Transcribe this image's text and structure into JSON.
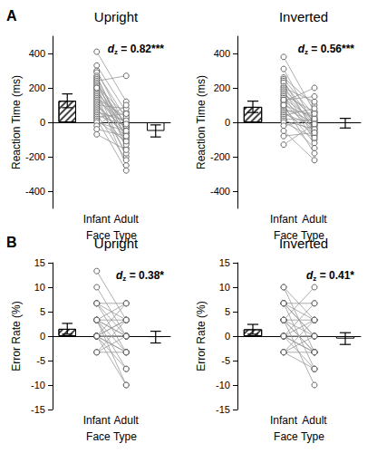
{
  "chart_data": [
    {
      "type": "bar",
      "panel_label": "A",
      "title": "Upright",
      "annotation": "dz = 0.82***",
      "xlabel": "Face Type",
      "ylabel": "Reaction Time (ms)",
      "categories": [
        null,
        "Infant",
        "Adult",
        null
      ],
      "ylim": [
        -500,
        500
      ],
      "yticks": [
        -400,
        -200,
        0,
        200,
        400
      ],
      "series": [
        {
          "type": "bar",
          "color": "#ffffff",
          "values": [
            125,
            null,
            null,
            -50
          ],
          "error": [
            40,
            null,
            null,
            35
          ]
        },
        {
          "type": "line",
          "marker": "circle",
          "color": "#999999",
          "pairs": [
            [
              410,
              120
            ],
            [
              330,
              60
            ],
            [
              300,
              -30
            ],
            [
              290,
              20
            ],
            [
              270,
              -100
            ],
            [
              260,
              -60
            ],
            [
              250,
              -150
            ],
            [
              240,
              270
            ],
            [
              230,
              -20
            ],
            [
              220,
              -80
            ],
            [
              210,
              40
            ],
            [
              200,
              -120
            ],
            [
              190,
              -200
            ],
            [
              180,
              -40
            ],
            [
              170,
              0
            ],
            [
              160,
              -250
            ],
            [
              150,
              -70
            ],
            [
              140,
              30
            ],
            [
              130,
              -10
            ],
            [
              120,
              -180
            ],
            [
              110,
              -90
            ],
            [
              100,
              80
            ],
            [
              90,
              -30
            ],
            [
              80,
              -130
            ],
            [
              70,
              -60
            ],
            [
              60,
              10
            ],
            [
              50,
              -220
            ],
            [
              40,
              -20
            ],
            [
              30,
              50
            ],
            [
              20,
              -280
            ],
            [
              10,
              -110
            ],
            [
              0,
              -50
            ],
            [
              -20,
              100
            ],
            [
              -40,
              -80
            ],
            [
              -70,
              -160
            ],
            [
              200,
              -10
            ]
          ]
        }
      ]
    },
    {
      "type": "bar",
      "title": "Inverted",
      "annotation": "dz = 0.56***",
      "xlabel": "Face Type",
      "ylabel": "Reaction Time (ms)",
      "categories": [
        null,
        "Infant",
        "Adult",
        null
      ],
      "ylim": [
        -500,
        500
      ],
      "yticks": [
        -400,
        -200,
        0,
        200,
        400
      ],
      "series": [
        {
          "type": "bar",
          "color": "#ffffff",
          "values": [
            90,
            null,
            null,
            -5
          ],
          "error": [
            33,
            null,
            null,
            28
          ]
        },
        {
          "type": "line",
          "marker": "circle",
          "color": "#999999",
          "pairs": [
            [
              380,
              60
            ],
            [
              310,
              -20
            ],
            [
              260,
              100
            ],
            [
              250,
              40
            ],
            [
              240,
              -60
            ],
            [
              230,
              0
            ],
            [
              210,
              -40
            ],
            [
              200,
              120
            ],
            [
              190,
              20
            ],
            [
              180,
              -80
            ],
            [
              170,
              -10
            ],
            [
              160,
              60
            ],
            [
              150,
              -100
            ],
            [
              140,
              10
            ],
            [
              130,
              -30
            ],
            [
              120,
              200
            ],
            [
              110,
              -50
            ],
            [
              100,
              30
            ],
            [
              90,
              -120
            ],
            [
              80,
              0
            ],
            [
              70,
              50
            ],
            [
              60,
              -70
            ],
            [
              50,
              -20
            ],
            [
              40,
              80
            ],
            [
              30,
              -150
            ],
            [
              20,
              10
            ],
            [
              10,
              -40
            ],
            [
              0,
              -90
            ],
            [
              -20,
              20
            ],
            [
              -50,
              -220
            ],
            [
              -80,
              -60
            ],
            [
              -130,
              -10
            ],
            [
              130,
              150
            ],
            [
              100,
              -180
            ]
          ]
        }
      ]
    },
    {
      "type": "bar",
      "panel_label": "B",
      "title": "Upright",
      "annotation": "dz = 0.38*",
      "xlabel": "Face Type",
      "ylabel": "Error Rate (%)",
      "categories": [
        null,
        "Infant",
        "Adult",
        null
      ],
      "ylim": [
        -15,
        15
      ],
      "yticks": [
        -15,
        -10,
        -5,
        0,
        5,
        10,
        15
      ],
      "series": [
        {
          "type": "bar",
          "color": "#ffffff",
          "values": [
            1.5,
            null,
            null,
            -0.2
          ],
          "error": [
            1.1,
            null,
            null,
            1.2
          ]
        },
        {
          "type": "line",
          "marker": "circle",
          "color": "#999999",
          "pairs": [
            [
              13.3,
              3.3
            ],
            [
              10,
              0
            ],
            [
              6.7,
              -3.3
            ],
            [
              6.7,
              6.7
            ],
            [
              6.7,
              0
            ],
            [
              3.3,
              -6.7
            ],
            [
              3.3,
              3.3
            ],
            [
              3.3,
              0
            ],
            [
              3.3,
              -3.3
            ],
            [
              3.3,
              6.7
            ],
            [
              3.3,
              -10
            ],
            [
              0,
              0
            ],
            [
              0,
              3.3
            ],
            [
              0,
              -3.3
            ],
            [
              0,
              0
            ],
            [
              0,
              -6.7
            ],
            [
              0,
              3.3
            ],
            [
              0,
              -10
            ],
            [
              0,
              0
            ],
            [
              0,
              6.7
            ],
            [
              -3.3,
              0
            ],
            [
              -3.3,
              -3.3
            ],
            [
              -3.3,
              3.3
            ],
            [
              3.3,
              0
            ],
            [
              0,
              -3.3
            ],
            [
              6.7,
              3.3
            ]
          ]
        }
      ]
    },
    {
      "type": "bar",
      "title": "Inverted",
      "annotation": "dz = 0.41*",
      "xlabel": "Face Type",
      "ylabel": "Error Rate (%)",
      "categories": [
        null,
        "Infant",
        "Adult",
        null
      ],
      "ylim": [
        -15,
        15
      ],
      "yticks": [
        -15,
        -10,
        -5,
        0,
        5,
        10,
        15
      ],
      "series": [
        {
          "type": "bar",
          "color": "#ffffff",
          "values": [
            1.4,
            null,
            null,
            -0.5
          ],
          "error": [
            1.0,
            null,
            null,
            1.2
          ]
        },
        {
          "type": "line",
          "marker": "circle",
          "color": "#999999",
          "pairs": [
            [
              10,
              3.3
            ],
            [
              10,
              -3.3
            ],
            [
              6.7,
              0
            ],
            [
              6.7,
              6.7
            ],
            [
              6.7,
              -6.7
            ],
            [
              6.7,
              3.3
            ],
            [
              3.3,
              0
            ],
            [
              3.3,
              -3.3
            ],
            [
              3.3,
              10
            ],
            [
              3.3,
              3.3
            ],
            [
              3.3,
              -10
            ],
            [
              0,
              0
            ],
            [
              0,
              -3.3
            ],
            [
              0,
              3.3
            ],
            [
              0,
              -6.7
            ],
            [
              0,
              0
            ],
            [
              0,
              6.7
            ],
            [
              -3.3,
              0
            ],
            [
              -3.3,
              -3.3
            ],
            [
              -3.3,
              3.3
            ],
            [
              3.3,
              -3.3
            ],
            [
              0,
              -3.3
            ],
            [
              6.7,
              0
            ],
            [
              -3.3,
              -6.7
            ]
          ]
        }
      ]
    }
  ]
}
